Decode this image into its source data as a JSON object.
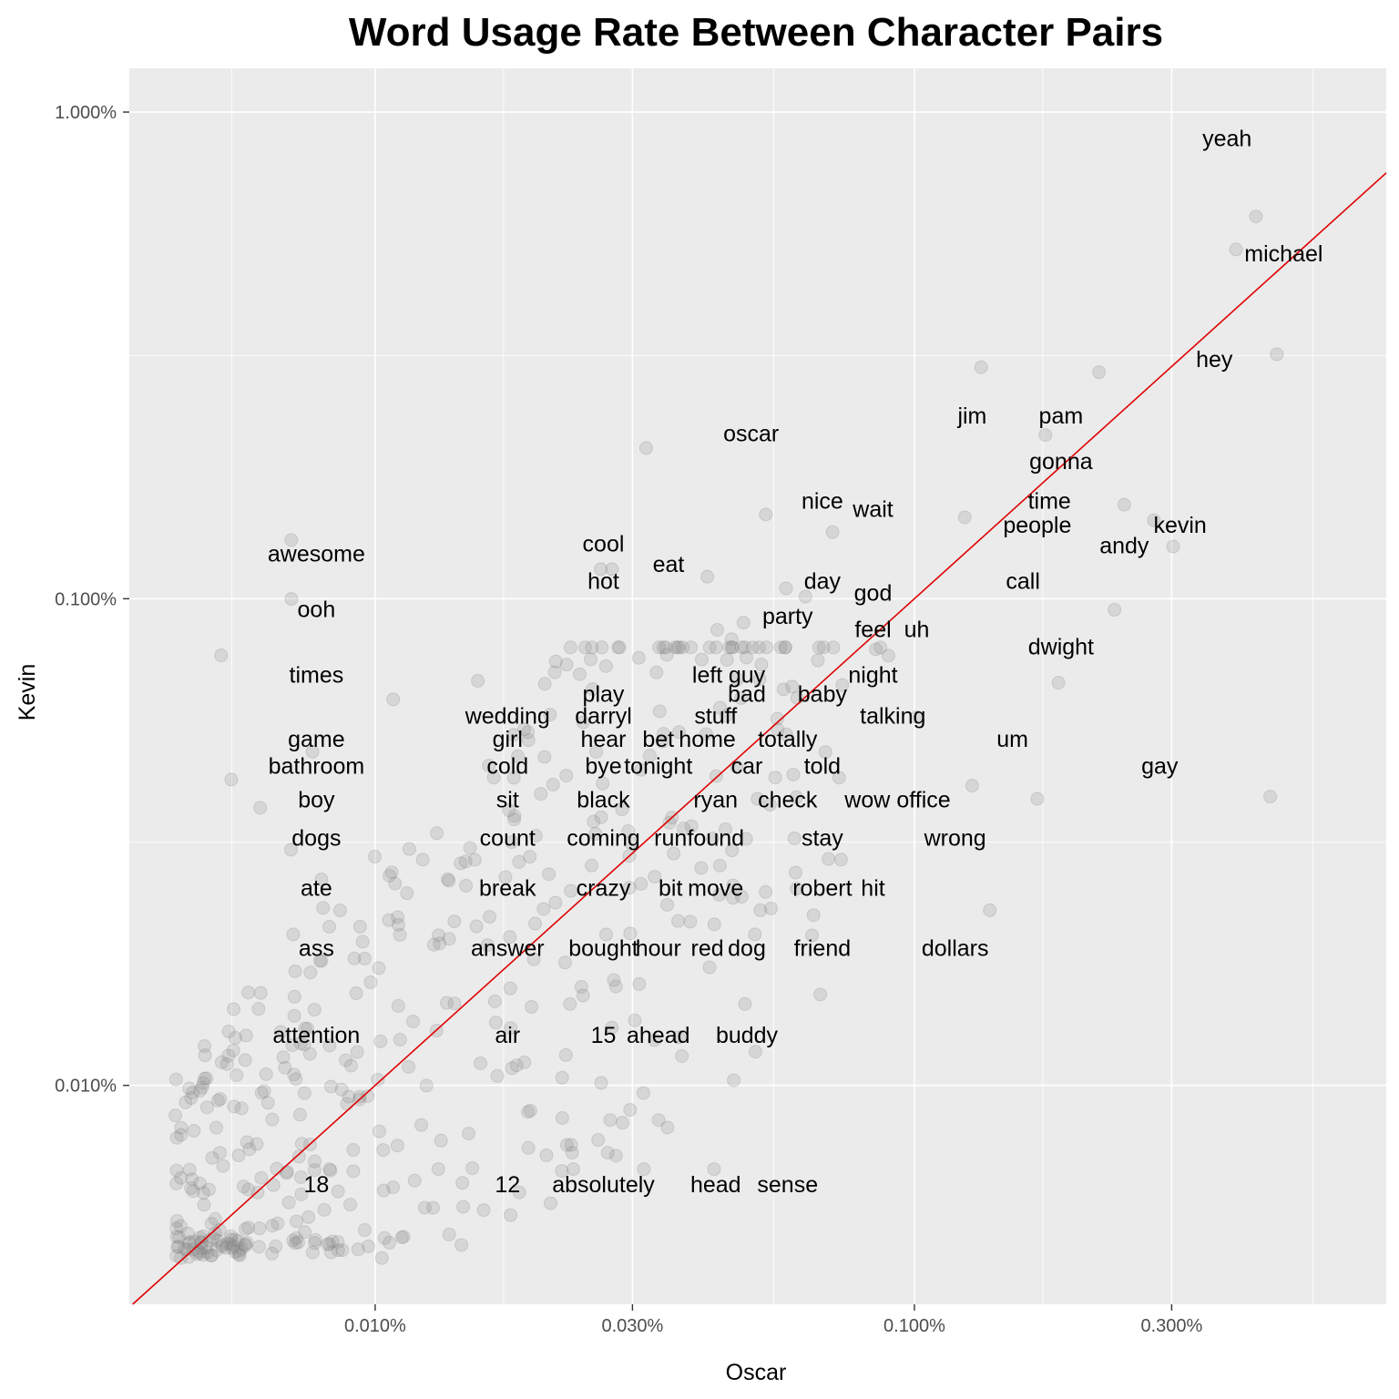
{
  "chart_data": {
    "type": "scatter",
    "title": "Word Usage Rate Between Character Pairs",
    "xlabel": "Oscar",
    "ylabel": "Kevin",
    "x_scale": "log10",
    "y_scale": "log10",
    "xlim": [
      3.5e-05,
      0.0075
    ],
    "ylim": [
      3.55e-05,
      0.0123
    ],
    "x_ticks": [
      {
        "value": 0.0001,
        "label": "0.010%"
      },
      {
        "value": 0.0003,
        "label": "0.030%"
      },
      {
        "value": 0.001,
        "label": "0.100%"
      },
      {
        "value": 0.003,
        "label": "0.300%"
      }
    ],
    "y_ticks": [
      {
        "value": 0.0001,
        "label": "0.010%"
      },
      {
        "value": 0.001,
        "label": "0.100%"
      },
      {
        "value": 0.01,
        "label": "1.000%"
      }
    ],
    "minor_x": [
      5.42e-05,
      0.000173,
      0.000548,
      0.00173,
      0.00548
    ],
    "minor_y": [
      3.16e-05,
      0.000316,
      0.00316
    ],
    "reference_line": {
      "label": "",
      "slope": 1,
      "intercept": 0,
      "color": "#e00000"
    },
    "point_color": "#808080",
    "grid": true,
    "panel_background": "#ebebeb",
    "labeled_points": [
      {
        "word": "yeah",
        "x": 0.0043,
        "y": 0.0061
      },
      {
        "word": "michael",
        "x": 0.00395,
        "y": 0.00522
      },
      {
        "word": "hey",
        "x": 0.0047,
        "y": 0.00318
      },
      {
        "word": "jim",
        "x": 0.00133,
        "y": 0.00299
      },
      {
        "word": "pam",
        "x": 0.0022,
        "y": 0.00292
      },
      {
        "word": "gonna",
        "x": 0.00175,
        "y": 0.00217
      },
      {
        "word": "oscar",
        "x": 0.000318,
        "y": 0.00204
      },
      {
        "word": "nice",
        "x": 0.00053,
        "y": 0.00149
      },
      {
        "word": "wait",
        "x": 0.000705,
        "y": 0.00137
      },
      {
        "word": "time",
        "x": 0.00245,
        "y": 0.00156
      },
      {
        "word": "people",
        "x": 0.00124,
        "y": 0.00147
      },
      {
        "word": "kevin",
        "x": 0.00278,
        "y": 0.00145
      },
      {
        "word": "andy",
        "x": 0.00302,
        "y": 0.00128
      },
      {
        "word": "awesome",
        "x": 6.99e-05,
        "y": 0.00132
      },
      {
        "word": "cool",
        "x": 0.000262,
        "y": 0.00115
      },
      {
        "word": "eat",
        "x": 0.000413,
        "y": 0.00111
      },
      {
        "word": "hot",
        "x": 0.000275,
        "y": 0.00115
      },
      {
        "word": "day",
        "x": 0.000578,
        "y": 0.00105
      },
      {
        "word": "call",
        "x": 0.00235,
        "y": 0.000949
      },
      {
        "word": "ooh",
        "x": 6.99e-05,
        "y": 0.000999
      },
      {
        "word": "god",
        "x": 0.000628,
        "y": 0.00101
      },
      {
        "word": "party",
        "x": 0.000482,
        "y": 0.000893
      },
      {
        "word": "feel",
        "x": 0.000848,
        "y": 0.000787
      },
      {
        "word": "uh",
        "x": 0.000865,
        "y": 0.000794
      },
      {
        "word": "dwight",
        "x": 0.00185,
        "y": 0.000672
      },
      {
        "word": "times",
        "x": 5.18e-05,
        "y": 0.000765
      },
      {
        "word": "left",
        "x": 0.000431,
        "y": 0.000863
      },
      {
        "word": "guy",
        "x": 0.000458,
        "y": 0.000826
      },
      {
        "word": "bad",
        "x": 0.000488,
        "y": 0.000757
      },
      {
        "word": "baby",
        "x": 0.000662,
        "y": 0.000747
      },
      {
        "word": "night",
        "x": 0.000895,
        "y": 0.000764
      },
      {
        "word": "play",
        "x": 0.000268,
        "y": 0.000727
      },
      {
        "word": "darryl",
        "x": 0.000253,
        "y": 0.000652
      },
      {
        "word": "wedding",
        "x": 0.000155,
        "y": 0.000678
      },
      {
        "word": "stuff",
        "x": 0.000477,
        "y": 0.000625
      },
      {
        "word": "talking",
        "x": 0.000735,
        "y": 0.000665
      },
      {
        "word": "game",
        "x": 0.000108,
        "y": 0.000621
      },
      {
        "word": "girl",
        "x": 0.000192,
        "y": 0.000532
      },
      {
        "word": "hear",
        "x": 0.000243,
        "y": 0.000557
      },
      {
        "word": "bet",
        "x": 0.000337,
        "y": 0.000587
      },
      {
        "word": "home",
        "x": 0.000366,
        "y": 0.000532
      },
      {
        "word": "totally",
        "x": 0.000557,
        "y": 0.000567
      },
      {
        "word": "um",
        "x": 0.00101,
        "y": 0.000571
      },
      {
        "word": "bathroom",
        "x": 7.65e-05,
        "y": 0.000485
      },
      {
        "word": "cold",
        "x": 0.000206,
        "y": 0.000473
      },
      {
        "word": "bye",
        "x": 0.000257,
        "y": 0.000485
      },
      {
        "word": "tonight",
        "x": 0.000323,
        "y": 0.000476
      },
      {
        "word": "car",
        "x": 0.000411,
        "y": 0.000527
      },
      {
        "word": "told",
        "x": 0.000684,
        "y": 0.000484
      },
      {
        "word": "gay",
        "x": 0.00457,
        "y": 0.000392
      },
      {
        "word": "boy",
        "x": 5.41e-05,
        "y": 0.000425
      },
      {
        "word": "sit",
        "x": 0.000166,
        "y": 0.000429
      },
      {
        "word": "black",
        "x": 0.000311,
        "y": 0.000445
      },
      {
        "word": "ryan",
        "x": 0.000429,
        "y": 0.000432
      },
      {
        "word": "check",
        "x": 0.000512,
        "y": 0.000388
      },
      {
        "word": "wow",
        "x": 0.000725,
        "y": 0.000429
      },
      {
        "word": "office",
        "x": 0.00128,
        "y": 0.000413
      },
      {
        "word": "dogs",
        "x": 6.12e-05,
        "y": 0.000372
      },
      {
        "word": "count",
        "x": 0.000181,
        "y": 0.000352
      },
      {
        "word": "coming",
        "x": 0.000287,
        "y": 0.000369
      },
      {
        "word": "run",
        "x": 0.000355,
        "y": 0.000355
      },
      {
        "word": "found",
        "x": 0.000386,
        "y": 0.000341
      },
      {
        "word": "stay",
        "x": 0.000604,
        "y": 0.000391
      },
      {
        "word": "wrong",
        "x": 0.00169,
        "y": 0.000388
      },
      {
        "word": "ate",
        "x": 6.98e-05,
        "y": 0.000305
      },
      {
        "word": "break",
        "x": 0.000144,
        "y": 0.000286
      },
      {
        "word": "crazy",
        "x": 0.000252,
        "y": 0.000283
      },
      {
        "word": "bit",
        "x": 0.000296,
        "y": 0.000296
      },
      {
        "word": "move",
        "x": 0.000459,
        "y": 0.000304
      },
      {
        "word": "robert",
        "x": 0.000693,
        "y": 0.000292
      },
      {
        "word": "hit",
        "x": 0.000731,
        "y": 0.000291
      },
      {
        "word": "ass",
        "x": 7.95e-05,
        "y": 0.000265
      },
      {
        "word": "answer",
        "x": 0.000163,
        "y": 0.000222
      },
      {
        "word": "bought",
        "x": 0.000198,
        "y": 0.000215
      },
      {
        "word": "hour",
        "x": 0.000348,
        "y": 0.000235
      },
      {
        "word": "red",
        "x": 0.000384,
        "y": 0.000217
      },
      {
        "word": "dog",
        "x": 0.000518,
        "y": 0.000229
      },
      {
        "word": "friend",
        "x": 0.000542,
        "y": 0.000231
      },
      {
        "word": "dollars",
        "x": 0.00138,
        "y": 0.000229
      },
      {
        "word": "attention",
        "x": 7.08e-05,
        "y": 0.000139
      },
      {
        "word": "air",
        "x": 0.000195,
        "y": 0.000145
      },
      {
        "word": "15",
        "x": 0.000243,
        "y": 0.000153
      },
      {
        "word": "ahead",
        "x": 0.000303,
        "y": 0.000136
      },
      {
        "word": "buddy",
        "x": 0.000485,
        "y": 0.000147
      },
      {
        "word": "18",
        "x": 8.23e-05,
        "y": 6.73e-05
      },
      {
        "word": "12",
        "x": 0.000131,
        "y": 6.73e-05
      },
      {
        "word": "absolutely",
        "x": 0.000233,
        "y": 6.73e-05
      },
      {
        "word": "head",
        "x": 0.000315,
        "y": 6.73e-05
      },
      {
        "word": "sense",
        "x": 0.000425,
        "y": 6.73e-05
      }
    ],
    "label_positions": [
      {
        "word": "yeah",
        "x": 0.0038,
        "y": 0.00885
      },
      {
        "word": "michael",
        "x": 0.00484,
        "y": 0.00513
      },
      {
        "word": "hey",
        "x": 0.0036,
        "y": 0.00311
      },
      {
        "word": "jim",
        "x": 0.00128,
        "y": 0.00238
      },
      {
        "word": "pam",
        "x": 0.00187,
        "y": 0.00238
      },
      {
        "word": "gonna",
        "x": 0.00187,
        "y": 0.00192
      },
      {
        "word": "oscar",
        "x": 0.000498,
        "y": 0.00219
      },
      {
        "word": "nice",
        "x": 0.000675,
        "y": 0.00159
      },
      {
        "word": "wait",
        "x": 0.000838,
        "y": 0.00153
      },
      {
        "word": "time",
        "x": 0.00178,
        "y": 0.00159
      },
      {
        "word": "people",
        "x": 0.00169,
        "y": 0.00142
      },
      {
        "word": "kevin",
        "x": 0.00311,
        "y": 0.00142
      },
      {
        "word": "andy",
        "x": 0.00245,
        "y": 0.00129
      },
      {
        "word": "awesome",
        "x": 7.78e-05,
        "y": 0.00124
      },
      {
        "word": "cool",
        "x": 0.000265,
        "y": 0.0013
      },
      {
        "word": "eat",
        "x": 0.00035,
        "y": 0.00118
      },
      {
        "word": "hot",
        "x": 0.000265,
        "y": 0.00109
      },
      {
        "word": "day",
        "x": 0.000675,
        "y": 0.00109
      },
      {
        "word": "call",
        "x": 0.00159,
        "y": 0.00109
      },
      {
        "word": "ooh",
        "x": 7.78e-05,
        "y": 0.000953
      },
      {
        "word": "god",
        "x": 0.000838,
        "y": 0.00103
      },
      {
        "word": "party",
        "x": 0.000582,
        "y": 0.000922
      },
      {
        "word": "feel",
        "x": 0.000838,
        "y": 0.000866
      },
      {
        "word": "uh",
        "x": 0.00101,
        "y": 0.000866
      },
      {
        "word": "dwight",
        "x": 0.00187,
        "y": 0.000799
      },
      {
        "word": "times",
        "x": 7.78e-05,
        "y": 0.000699
      },
      {
        "word": "left",
        "x": 0.000413,
        "y": 0.000699
      },
      {
        "word": "guy",
        "x": 0.000489,
        "y": 0.000699
      },
      {
        "word": "bad",
        "x": 0.000489,
        "y": 0.000639
      },
      {
        "word": "baby",
        "x": 0.000675,
        "y": 0.000639
      },
      {
        "word": "night",
        "x": 0.000838,
        "y": 0.000699
      },
      {
        "word": "play",
        "x": 0.000265,
        "y": 0.000639
      },
      {
        "word": "darryl",
        "x": 0.000265,
        "y": 0.000576
      },
      {
        "word": "wedding",
        "x": 0.000176,
        "y": 0.000576
      },
      {
        "word": "stuff",
        "x": 0.000428,
        "y": 0.000576
      },
      {
        "word": "talking",
        "x": 0.000912,
        "y": 0.000576
      },
      {
        "word": "game",
        "x": 7.78e-05,
        "y": 0.000516
      },
      {
        "word": "girl",
        "x": 0.000176,
        "y": 0.000516
      },
      {
        "word": "hear",
        "x": 0.000265,
        "y": 0.000516
      },
      {
        "word": "bet",
        "x": 0.000335,
        "y": 0.000516
      },
      {
        "word": "home",
        "x": 0.000413,
        "y": 0.000516
      },
      {
        "word": "totally",
        "x": 0.000582,
        "y": 0.000516
      },
      {
        "word": "um",
        "x": 0.00152,
        "y": 0.000516
      },
      {
        "word": "bathroom",
        "x": 7.78e-05,
        "y": 0.000454
      },
      {
        "word": "cold",
        "x": 0.000176,
        "y": 0.000454
      },
      {
        "word": "bye",
        "x": 0.000265,
        "y": 0.000454
      },
      {
        "word": "tonight",
        "x": 0.000335,
        "y": 0.000454
      },
      {
        "word": "car",
        "x": 0.000489,
        "y": 0.000454
      },
      {
        "word": "told",
        "x": 0.000675,
        "y": 0.000454
      },
      {
        "word": "gay",
        "x": 0.00285,
        "y": 0.000454
      },
      {
        "word": "boy",
        "x": 7.78e-05,
        "y": 0.000387
      },
      {
        "word": "sit",
        "x": 0.000176,
        "y": 0.000387
      },
      {
        "word": "black",
        "x": 0.000265,
        "y": 0.000387
      },
      {
        "word": "ryan",
        "x": 0.000428,
        "y": 0.000387
      },
      {
        "word": "check",
        "x": 0.000582,
        "y": 0.000387
      },
      {
        "word": "wow",
        "x": 0.000818,
        "y": 0.000387
      },
      {
        "word": "office",
        "x": 0.00104,
        "y": 0.000387
      },
      {
        "word": "dogs",
        "x": 7.78e-05,
        "y": 0.000323
      },
      {
        "word": "count",
        "x": 0.000176,
        "y": 0.000323
      },
      {
        "word": "coming",
        "x": 0.000265,
        "y": 0.000323
      },
      {
        "word": "run",
        "x": 0.000353,
        "y": 0.000323
      },
      {
        "word": "found",
        "x": 0.000428,
        "y": 0.000323
      },
      {
        "word": "stay",
        "x": 0.000675,
        "y": 0.000323
      },
      {
        "word": "wrong",
        "x": 0.00119,
        "y": 0.000323
      },
      {
        "word": "ate",
        "x": 7.78e-05,
        "y": 0.000255
      },
      {
        "word": "break",
        "x": 0.000176,
        "y": 0.000255
      },
      {
        "word": "crazy",
        "x": 0.000265,
        "y": 0.000255
      },
      {
        "word": "bit",
        "x": 0.000353,
        "y": 0.000255
      },
      {
        "word": "move",
        "x": 0.000428,
        "y": 0.000255
      },
      {
        "word": "robert",
        "x": 0.000675,
        "y": 0.000255
      },
      {
        "word": "hit",
        "x": 0.000838,
        "y": 0.000255
      },
      {
        "word": "ass",
        "x": 7.78e-05,
        "y": 0.000192
      },
      {
        "word": "answer",
        "x": 0.000176,
        "y": 0.000192
      },
      {
        "word": "bought",
        "x": 0.000265,
        "y": 0.000192
      },
      {
        "word": "hour",
        "x": 0.000335,
        "y": 0.000192
      },
      {
        "word": "red",
        "x": 0.000413,
        "y": 0.000192
      },
      {
        "word": "dog",
        "x": 0.000489,
        "y": 0.000192
      },
      {
        "word": "friend",
        "x": 0.000675,
        "y": 0.000192
      },
      {
        "word": "dollars",
        "x": 0.00119,
        "y": 0.000192
      },
      {
        "word": "attention",
        "x": 7.78e-05,
        "y": 0.000127
      },
      {
        "word": "air",
        "x": 0.000176,
        "y": 0.000127
      },
      {
        "word": "15",
        "x": 0.000265,
        "y": 0.000127
      },
      {
        "word": "ahead",
        "x": 0.000335,
        "y": 0.000127
      },
      {
        "word": "buddy",
        "x": 0.000489,
        "y": 0.000127
      },
      {
        "word": "18",
        "x": 7.78e-05,
        "y": 6.27e-05
      },
      {
        "word": "12",
        "x": 0.000176,
        "y": 6.27e-05
      },
      {
        "word": "absolutely",
        "x": 0.000265,
        "y": 6.27e-05
      },
      {
        "word": "head",
        "x": 0.000428,
        "y": 6.27e-05
      },
      {
        "word": "sense",
        "x": 0.000582,
        "y": 6.27e-05
      }
    ],
    "background_point_count": 520
  }
}
